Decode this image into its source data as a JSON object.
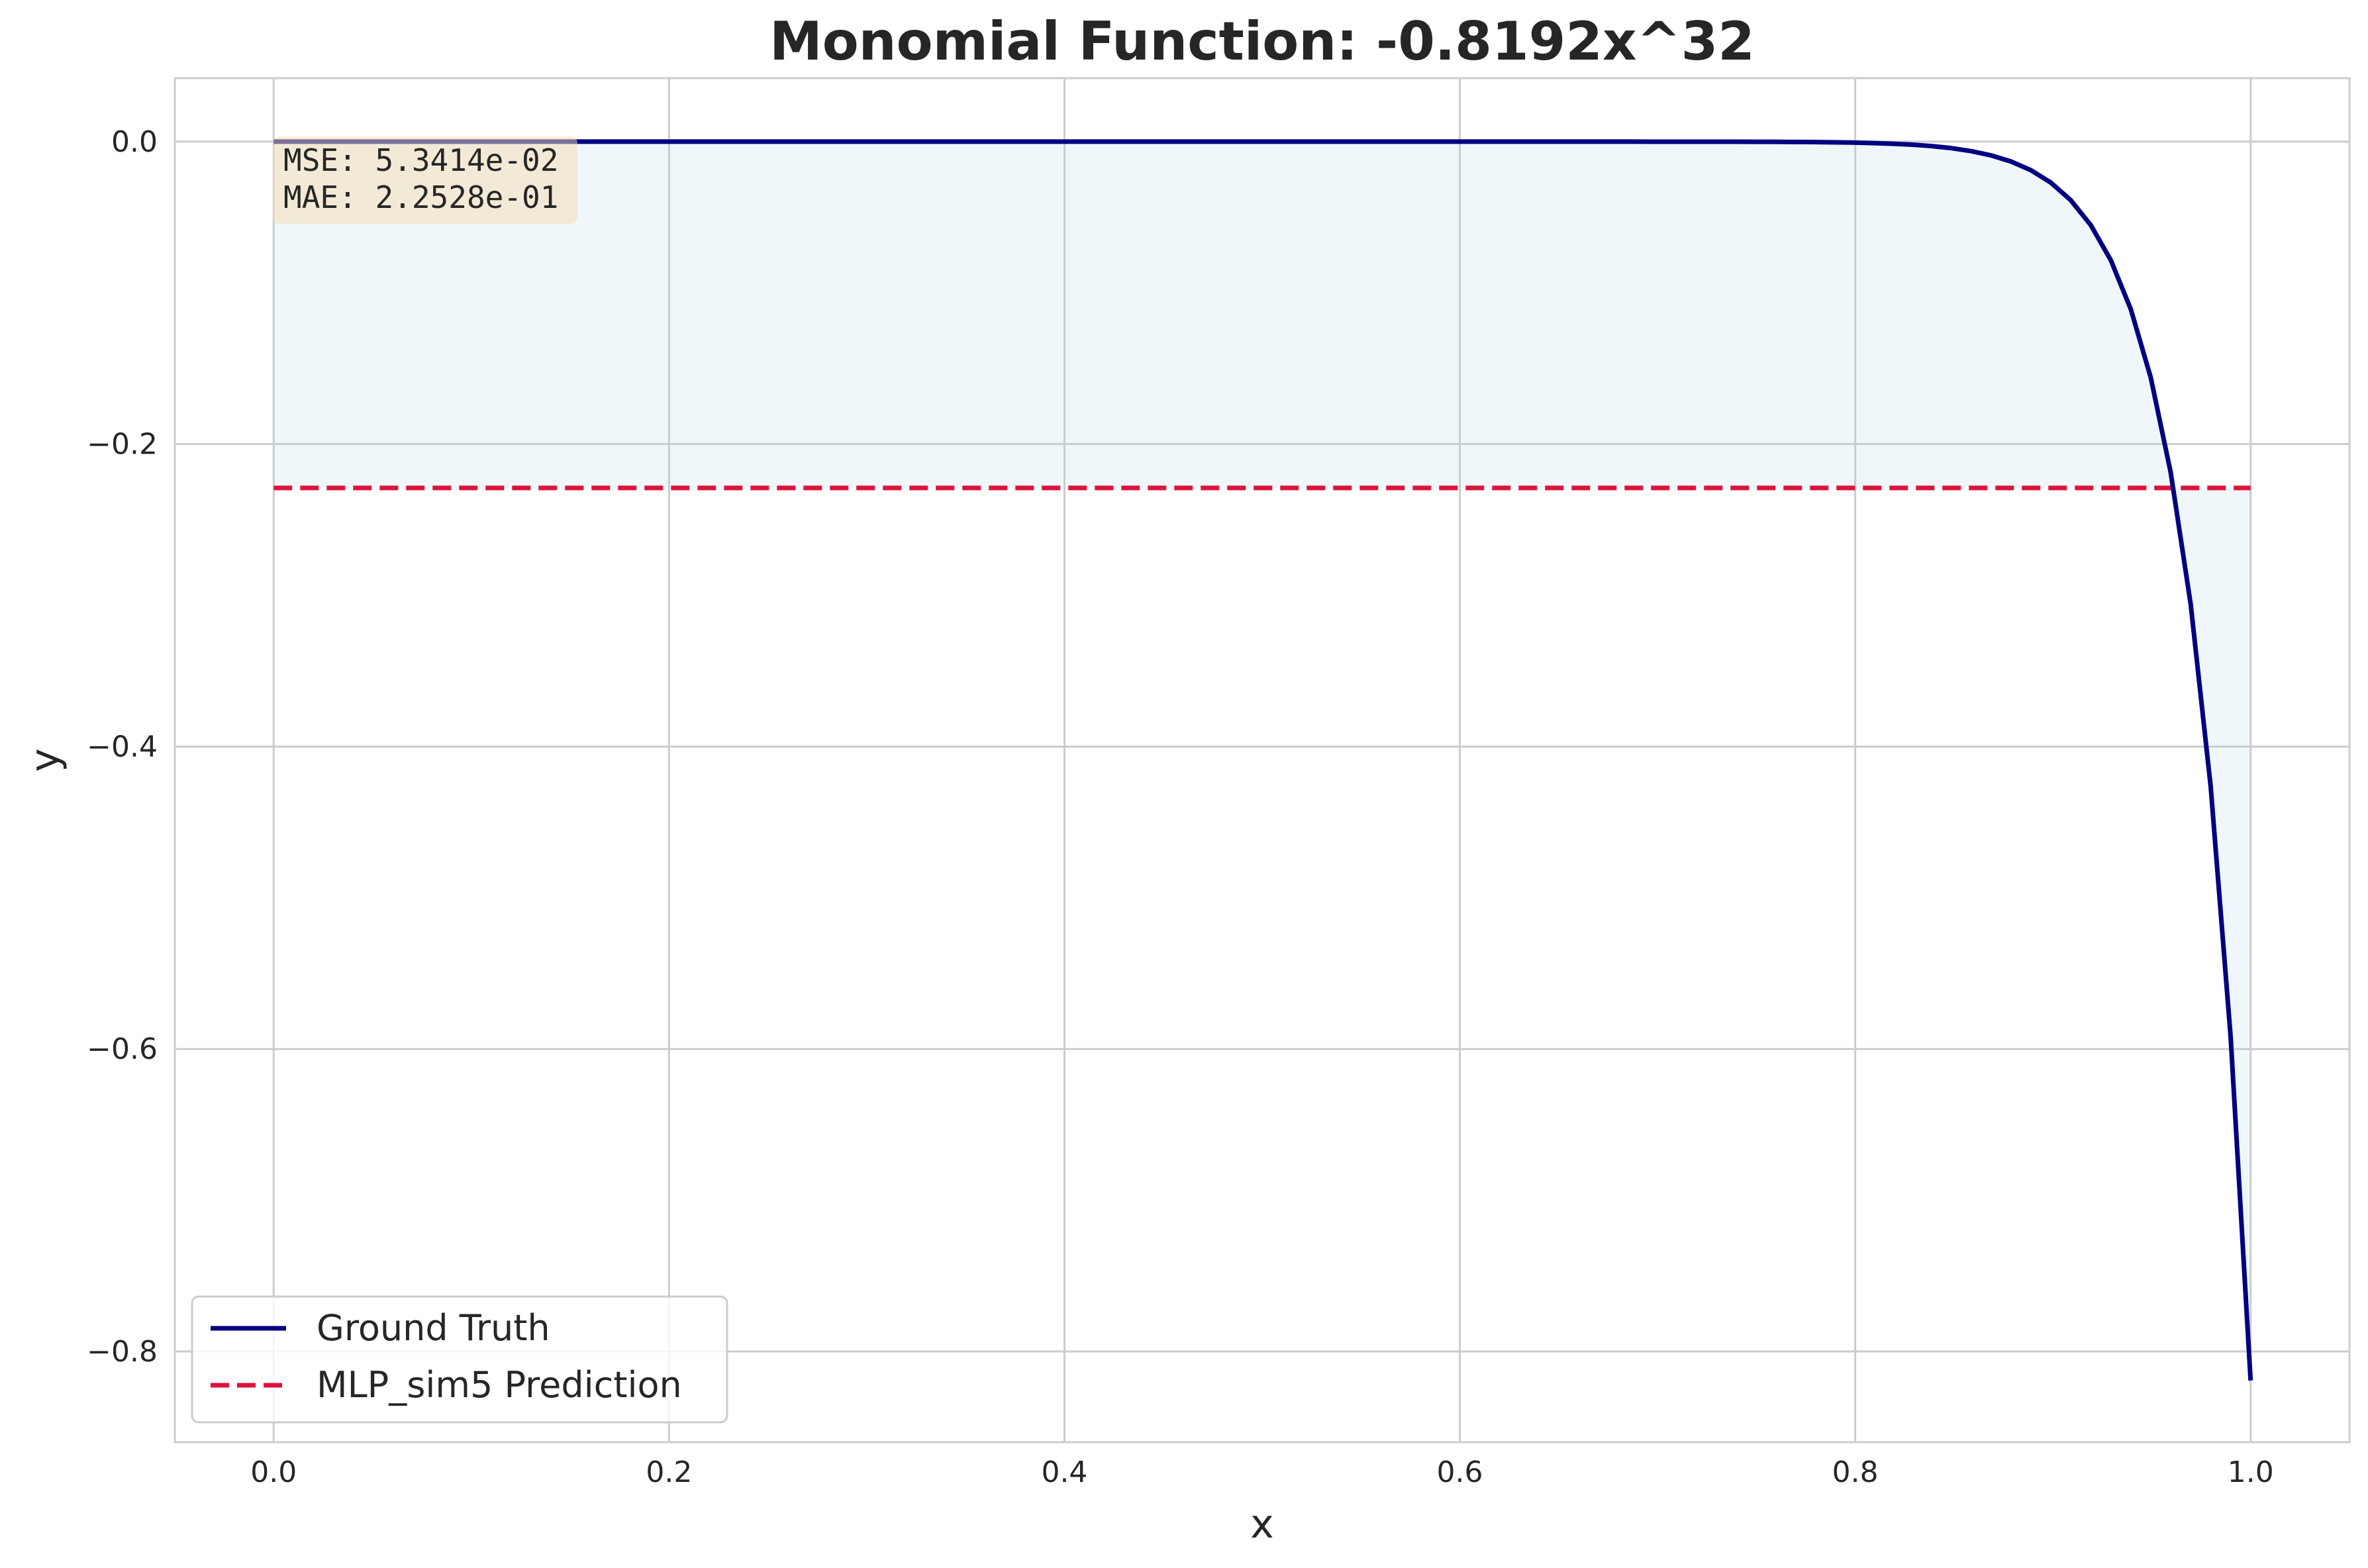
{
  "chart_data": {
    "type": "line",
    "title": "Monomial Function: -0.8192x^32",
    "xlabel": "x",
    "ylabel": "y",
    "xlim": [
      -0.05,
      1.05
    ],
    "ylim": [
      -0.86,
      0.042
    ],
    "x_ticks": [
      0.0,
      0.2,
      0.4,
      0.6,
      0.8,
      1.0
    ],
    "x_tick_labels": [
      "0.0",
      "0.2",
      "0.4",
      "0.6",
      "0.8",
      "1.0"
    ],
    "y_ticks": [
      0.0,
      -0.2,
      -0.4,
      -0.6,
      -0.8
    ],
    "y_tick_labels": [
      "0.0",
      "−0.2",
      "−0.4",
      "−0.6",
      "−0.8"
    ],
    "grid": true,
    "legend_position": "lower-left",
    "fill_between": true,
    "series": [
      {
        "name": "Ground Truth",
        "style": "solid",
        "color": "#000080",
        "coefficient": -0.8192,
        "exponent": 32,
        "x_range": [
          0,
          1
        ],
        "samples": 100,
        "x_sample": [
          0.0,
          0.5,
          0.8,
          0.85,
          0.9,
          0.95,
          0.97,
          0.99,
          1.0
        ],
        "y_sample": [
          0.0,
          0.0,
          -0.0006,
          -0.0045,
          -0.028,
          -0.159,
          -0.309,
          -0.593,
          -0.8192
        ]
      },
      {
        "name": "MLP_sim5 Prediction",
        "style": "dashed",
        "color": "#DC143C",
        "x": [
          0.0,
          1.0
        ],
        "y": [
          -0.229,
          -0.229
        ]
      }
    ],
    "fill_color": "#add8e6",
    "annotations": {
      "mse": "MSE: 5.3414e-02",
      "mae": "MAE: 2.2528e-01",
      "box_color": "#f5deb3"
    }
  }
}
